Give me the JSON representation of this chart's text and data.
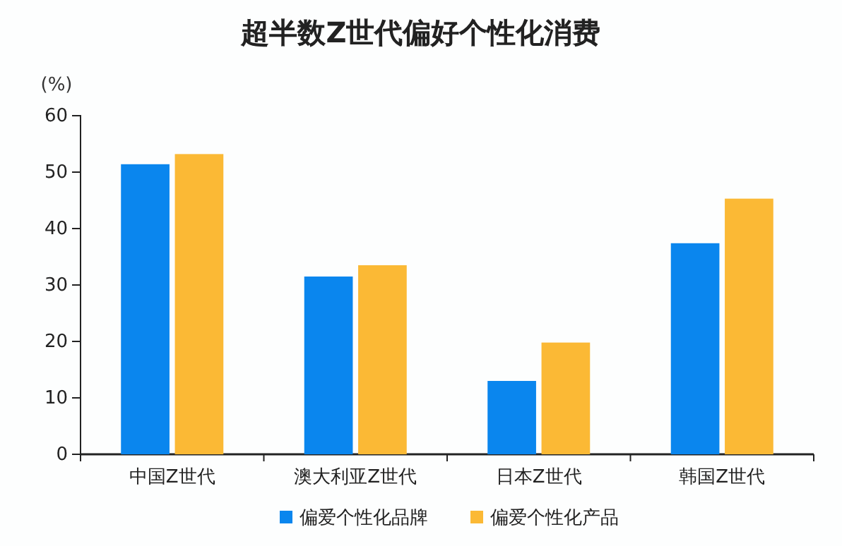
{
  "chart_data": {
    "type": "bar",
    "title": "超半数Z世代偏好个性化消费",
    "ylabel": "(%)",
    "categories": [
      "中国Z世代",
      "澳大利亚Z世代",
      "日本Z世代",
      "韩国Z世代"
    ],
    "series": [
      {
        "name": "偏爱个性化品牌",
        "color": "#0a86ee",
        "values": [
          51.4,
          31.5,
          13,
          37.4
        ]
      },
      {
        "name": "偏爱个性化产品",
        "color": "#fbb935",
        "values": [
          53.2,
          33.5,
          19.8,
          45.3
        ]
      }
    ],
    "ylim": [
      0,
      60
    ],
    "yticks": [
      0,
      10,
      20,
      30,
      40,
      50,
      60
    ],
    "grid": false,
    "legend": "bottom"
  }
}
